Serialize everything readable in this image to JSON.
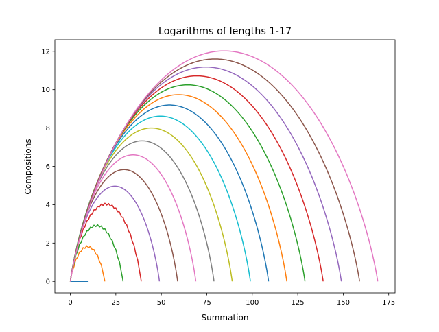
{
  "chart_data": {
    "type": "line",
    "title": "Logarithms of lengths 1-17",
    "xlabel": "Summation",
    "ylabel": "Compositions",
    "xlim": [
      -8.5,
      178.5
    ],
    "ylim": [
      -0.6,
      12.6
    ],
    "xticks": [
      0,
      25,
      50,
      75,
      100,
      125,
      150,
      175
    ],
    "yticks": [
      0,
      2,
      4,
      6,
      8,
      10,
      12
    ],
    "xtick_labels": [
      "0",
      "25",
      "50",
      "75",
      "100",
      "125",
      "150",
      "175"
    ],
    "ytick_labels": [
      "0",
      "2",
      "4",
      "6",
      "8",
      "10",
      "12"
    ],
    "grid": false,
    "legend": "none",
    "series_model": "series k (k = 1..17) spans summation 0 to 10*k; curve height follows ln(C(10k, s)) / k, peaking near ln(2^k ... ) approximated below by peaks",
    "series": [
      {
        "length": 1,
        "x_max": 10,
        "peak": 0.0,
        "color": "#1f77b4"
      },
      {
        "length": 2,
        "x_max": 19,
        "peak": 1.8,
        "color": "#ff7f0e"
      },
      {
        "length": 3,
        "x_max": 29,
        "peak": 2.9,
        "color": "#2ca02c"
      },
      {
        "length": 4,
        "x_max": 39,
        "peak": 4.02,
        "color": "#d62728"
      },
      {
        "length": 5,
        "x_max": 49,
        "peak": 4.97,
        "color": "#9467bd"
      },
      {
        "length": 6,
        "x_max": 59,
        "peak": 5.83,
        "color": "#8c564b"
      },
      {
        "length": 7,
        "x_max": 69,
        "peak": 6.6,
        "color": "#e377c2"
      },
      {
        "length": 8,
        "x_max": 79,
        "peak": 7.33,
        "color": "#7f7f7f"
      },
      {
        "length": 9,
        "x_max": 89,
        "peak": 8.0,
        "color": "#bcbd22"
      },
      {
        "length": 10,
        "x_max": 99,
        "peak": 8.62,
        "color": "#17becf"
      },
      {
        "length": 11,
        "x_max": 109,
        "peak": 9.2,
        "color": "#1f77b4"
      },
      {
        "length": 12,
        "x_max": 119,
        "peak": 9.74,
        "color": "#ff7f0e"
      },
      {
        "length": 13,
        "x_max": 129,
        "peak": 10.25,
        "color": "#2ca02c"
      },
      {
        "length": 14,
        "x_max": 139,
        "peak": 10.72,
        "color": "#d62728"
      },
      {
        "length": 15,
        "x_max": 149,
        "peak": 11.18,
        "color": "#9467bd"
      },
      {
        "length": 16,
        "x_max": 159,
        "peak": 11.6,
        "color": "#8c564b"
      },
      {
        "length": 17,
        "x_max": 169,
        "peak": 12.02,
        "color": "#e377c2"
      }
    ]
  }
}
